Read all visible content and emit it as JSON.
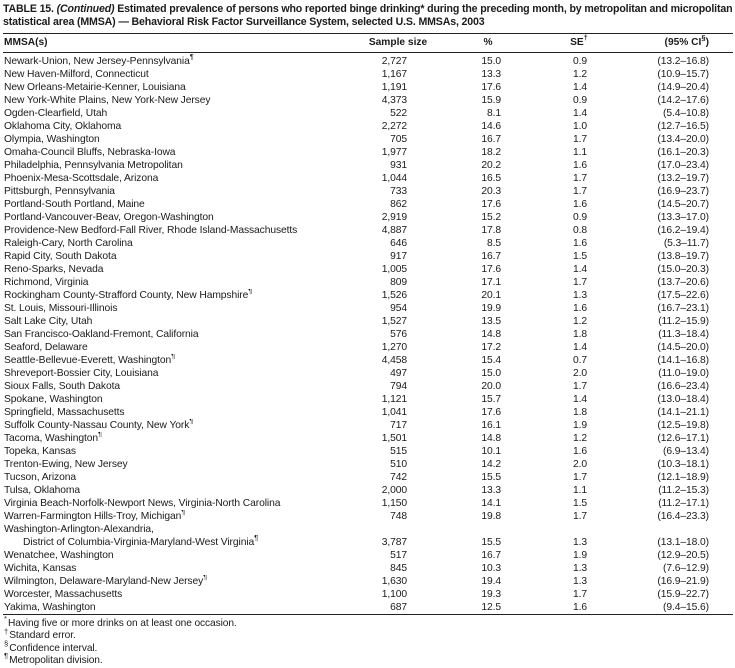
{
  "title": {
    "prefix": "TABLE 15. ",
    "continued": "(Continued)",
    "rest": " Estimated prevalence of persons who reported binge drinking* during the preceding month, by metropolitan and micropolitan statistical area (MMSA) — Behavioral Risk Factor Surveillance System, selected U.S. MMSAs, 2003"
  },
  "table": {
    "columns": {
      "mmsa": "MMSA(s)",
      "sample": "Sample size",
      "pct": "%",
      "se": "SE",
      "se_sup": "†",
      "ci": "(95% CI",
      "ci_sup": "§",
      "ci_close": ")"
    },
    "rows": [
      {
        "name": "Newark-Union, New Jersey-Pennsylvania",
        "sup": "¶",
        "sample": "2,727",
        "pct": "15.0",
        "se": "0.9",
        "ci": "(13.2–16.8)"
      },
      {
        "name": "New Haven-Milford, Connecticut",
        "sample": "1,167",
        "pct": "13.3",
        "se": "1.2",
        "ci": "(10.9–15.7)"
      },
      {
        "name": "New Orleans-Metairie-Kenner, Louisiana",
        "sample": "1,191",
        "pct": "17.6",
        "se": "1.4",
        "ci": "(14.9–20.4)"
      },
      {
        "name": "New York-White Plains, New York-New Jersey",
        "sample": "4,373",
        "pct": "15.9",
        "se": "0.9",
        "ci": "(14.2–17.6)"
      },
      {
        "name": "Ogden-Clearfield, Utah",
        "sample": "522",
        "pct": "8.1",
        "se": "1.4",
        "ci": "(5.4–10.8)"
      },
      {
        "name": "Oklahoma City, Oklahoma",
        "sample": "2,272",
        "pct": "14.6",
        "se": "1.0",
        "ci": "(12.7–16.5)"
      },
      {
        "name": "Olympia, Washington",
        "sample": "705",
        "pct": "16.7",
        "se": "1.7",
        "ci": "(13.4–20.0)"
      },
      {
        "name": "Omaha-Council Bluffs, Nebraska-Iowa",
        "sample": "1,977",
        "pct": "18.2",
        "se": "1.1",
        "ci": "(16.1–20.3)"
      },
      {
        "name": "Philadelphia, Pennsylvania Metropolitan",
        "sample": "931",
        "pct": "20.2",
        "se": "1.6",
        "ci": "(17.0–23.4)"
      },
      {
        "name": "Phoenix-Mesa-Scottsdale, Arizona",
        "sample": "1,044",
        "pct": "16.5",
        "se": "1.7",
        "ci": "(13.2–19.7)"
      },
      {
        "name": "Pittsburgh, Pennsylvania",
        "sample": "733",
        "pct": "20.3",
        "se": "1.7",
        "ci": "(16.9–23.7)"
      },
      {
        "name": "Portland-South Portland, Maine",
        "sample": "862",
        "pct": "17.6",
        "se": "1.6",
        "ci": "(14.5–20.7)"
      },
      {
        "name": "Portland-Vancouver-Beav, Oregon-Washington",
        "sample": "2,919",
        "pct": "15.2",
        "se": "0.9",
        "ci": "(13.3–17.0)"
      },
      {
        "name": "Providence-New Bedford-Fall River, Rhode Island-Massachusetts",
        "sample": "4,887",
        "pct": "17.8",
        "se": "0.8",
        "ci": "(16.2–19.4)"
      },
      {
        "name": "Raleigh-Cary, North Carolina",
        "sample": "646",
        "pct": "8.5",
        "se": "1.6",
        "ci": "(5.3–11.7)"
      },
      {
        "name": "Rapid City, South Dakota",
        "sample": "917",
        "pct": "16.7",
        "se": "1.5",
        "ci": "(13.8–19.7)"
      },
      {
        "name": "Reno-Sparks, Nevada",
        "sample": "1,005",
        "pct": "17.6",
        "se": "1.4",
        "ci": "(15.0–20.3)"
      },
      {
        "name": "Richmond, Virginia",
        "sample": "809",
        "pct": "17.1",
        "se": "1.7",
        "ci": "(13.7–20.6)"
      },
      {
        "name": "Rockingham County-Strafford County, New Hampshire",
        "sup": "¶",
        "sample": "1,526",
        "pct": "20.1",
        "se": "1.3",
        "ci": "(17.5–22.6)"
      },
      {
        "name": "St. Louis, Missouri-Illinois",
        "sample": "954",
        "pct": "19.9",
        "se": "1.6",
        "ci": "(16.7–23.1)"
      },
      {
        "name": "Salt Lake City, Utah",
        "sample": "1,527",
        "pct": "13.5",
        "se": "1.2",
        "ci": "(11.2–15.9)"
      },
      {
        "name": "San Francisco-Oakland-Fremont, California",
        "sample": "576",
        "pct": "14.8",
        "se": "1.8",
        "ci": "(11.3–18.4)"
      },
      {
        "name": "Seaford, Delaware",
        "sample": "1,270",
        "pct": "17.2",
        "se": "1.4",
        "ci": "(14.5–20.0)"
      },
      {
        "name": "Seattle-Bellevue-Everett, Washington",
        "sup": "¶",
        "sample": "4,458",
        "pct": "15.4",
        "se": "0.7",
        "ci": "(14.1–16.8)"
      },
      {
        "name": "Shreveport-Bossier City, Louisiana",
        "sample": "497",
        "pct": "15.0",
        "se": "2.0",
        "ci": "(11.0–19.0)"
      },
      {
        "name": "Sioux Falls, South Dakota",
        "sample": "794",
        "pct": "20.0",
        "se": "1.7",
        "ci": "(16.6–23.4)"
      },
      {
        "name": "Spokane, Washington",
        "sample": "1,121",
        "pct": "15.7",
        "se": "1.4",
        "ci": "(13.0–18.4)"
      },
      {
        "name": "Springfield, Massachusetts",
        "sample": "1,041",
        "pct": "17.6",
        "se": "1.8",
        "ci": "(14.1–21.1)"
      },
      {
        "name": "Suffolk County-Nassau County, New York",
        "sup": "¶",
        "sample": "717",
        "pct": "16.1",
        "se": "1.9",
        "ci": "(12.5–19.8)"
      },
      {
        "name": "Tacoma, Washington",
        "sup": "¶",
        "sample": "1,501",
        "pct": "14.8",
        "se": "1.2",
        "ci": "(12.6–17.1)"
      },
      {
        "name": "Topeka, Kansas",
        "sample": "515",
        "pct": "10.1",
        "se": "1.6",
        "ci": "(6.9–13.4)"
      },
      {
        "name": "Trenton-Ewing, New Jersey",
        "sample": "510",
        "pct": "14.2",
        "se": "2.0",
        "ci": "(10.3–18.1)"
      },
      {
        "name": "Tucson, Arizona",
        "sample": "742",
        "pct": "15.5",
        "se": "1.7",
        "ci": "(12.1–18.9)"
      },
      {
        "name": "Tulsa, Oklahoma",
        "sample": "2,000",
        "pct": "13.3",
        "se": "1.1",
        "ci": "(11.2–15.3)"
      },
      {
        "name": "Virginia Beach-Norfolk-Newport News, Virginia-North Carolina",
        "sample": "1,150",
        "pct": "14.1",
        "se": "1.5",
        "ci": "(11.2–17.1)"
      },
      {
        "name": "Warren-Farmington Hills-Troy, Michigan",
        "sup": "¶",
        "sample": "748",
        "pct": "19.8",
        "se": "1.7",
        "ci": "(16.4–23.3)"
      },
      {
        "name": "Washington-Arlington-Alexandria,",
        "name2": "District of Columbia-Virginia-Maryland-West Virginia",
        "sup": "¶",
        "sample": "3,787",
        "pct": "15.5",
        "se": "1.3",
        "ci": "(13.1–18.0)"
      },
      {
        "name": "Wenatchee, Washington",
        "sample": "517",
        "pct": "16.7",
        "se": "1.9",
        "ci": "(12.9–20.5)"
      },
      {
        "name": "Wichita, Kansas",
        "sample": "845",
        "pct": "10.3",
        "se": "1.3",
        "ci": "(7.6–12.9)"
      },
      {
        "name": "Wilmington, Delaware-Maryland-New Jersey",
        "sup": "¶",
        "sample": "1,630",
        "pct": "19.4",
        "se": "1.3",
        "ci": "(16.9–21.9)"
      },
      {
        "name": "Worcester, Massachusetts",
        "sample": "1,100",
        "pct": "19.3",
        "se": "1.7",
        "ci": "(15.9–22.7)"
      },
      {
        "name": "Yakima, Washington",
        "sample": "687",
        "pct": "12.5",
        "se": "1.6",
        "ci": "(9.4–15.6)"
      }
    ]
  },
  "footnotes": [
    {
      "marker": "*",
      "text": "Having five or more drinks on at least one occasion."
    },
    {
      "marker": "†",
      "text": "Standard error."
    },
    {
      "marker": "§",
      "text": "Confidence interval."
    },
    {
      "marker": "¶",
      "text": "Metropolitan division."
    }
  ]
}
